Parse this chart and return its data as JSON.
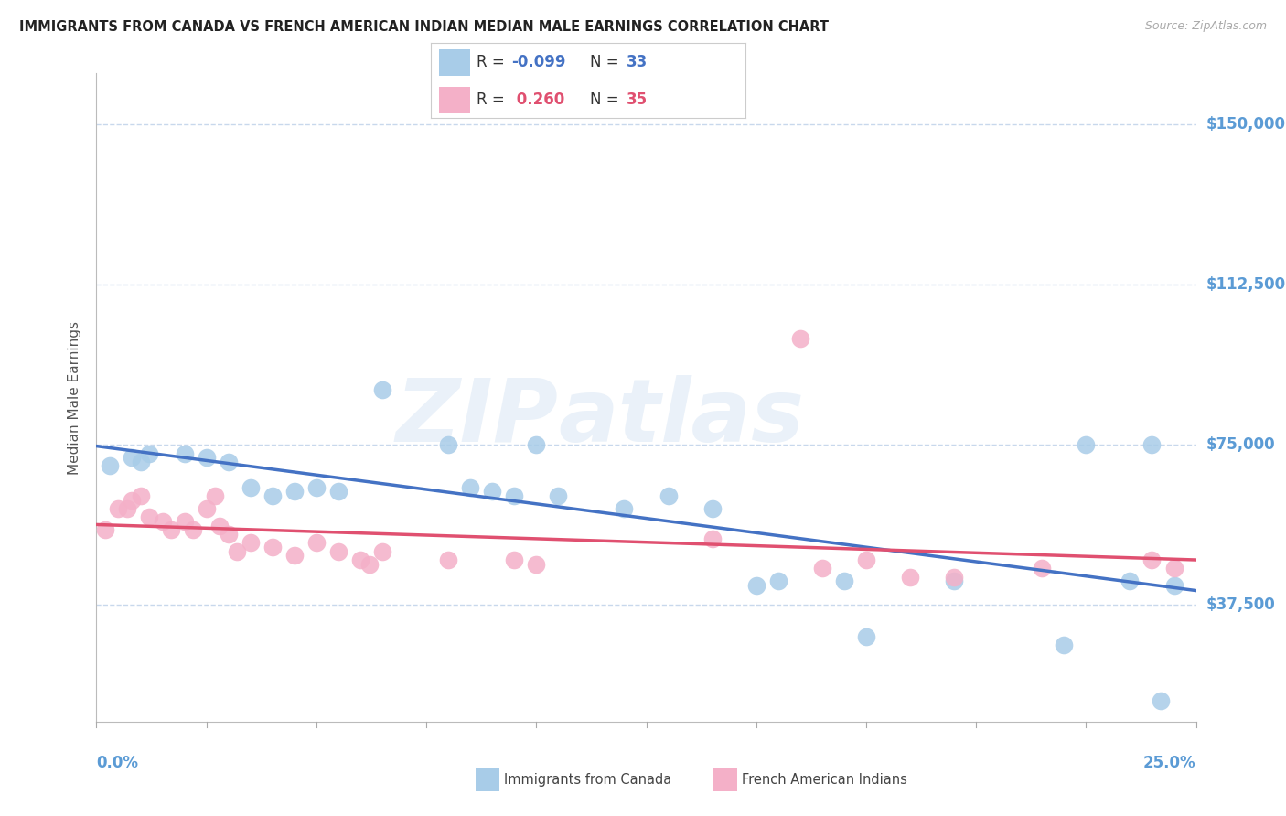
{
  "title": "IMMIGRANTS FROM CANADA VS FRENCH AMERICAN INDIAN MEDIAN MALE EARNINGS CORRELATION CHART",
  "source": "Source: ZipAtlas.com",
  "ylabel": "Median Male Earnings",
  "xlim": [
    0.0,
    0.25
  ],
  "ylim": [
    10000,
    162000
  ],
  "yticks": [
    37500,
    75000,
    112500,
    150000
  ],
  "ytick_labels": [
    "$37,500",
    "$75,000",
    "$112,500",
    "$150,000"
  ],
  "series1_color": "#a8cce8",
  "series2_color": "#f4b0c8",
  "line1_color": "#4472c4",
  "line2_color": "#e05070",
  "background_color": "#ffffff",
  "grid_color": "#c8d8ec",
  "axis_label_color": "#5b9bd5",
  "title_color": "#222222",
  "canada_x": [
    0.003,
    0.008,
    0.01,
    0.012,
    0.02,
    0.025,
    0.03,
    0.035,
    0.04,
    0.045,
    0.05,
    0.055,
    0.065,
    0.08,
    0.085,
    0.09,
    0.095,
    0.1,
    0.105,
    0.12,
    0.13,
    0.14,
    0.15,
    0.155,
    0.17,
    0.175,
    0.195,
    0.22,
    0.225,
    0.235,
    0.24,
    0.242,
    0.245
  ],
  "canada_y": [
    70000,
    72000,
    71000,
    73000,
    73000,
    72000,
    71000,
    65000,
    63000,
    64000,
    65000,
    64000,
    88000,
    75000,
    65000,
    64000,
    63000,
    75000,
    63000,
    60000,
    63000,
    60000,
    42000,
    43000,
    43000,
    30000,
    43000,
    28000,
    75000,
    43000,
    75000,
    15000,
    42000
  ],
  "french_x": [
    0.002,
    0.005,
    0.007,
    0.008,
    0.01,
    0.012,
    0.015,
    0.017,
    0.02,
    0.022,
    0.025,
    0.027,
    0.028,
    0.03,
    0.032,
    0.035,
    0.04,
    0.045,
    0.05,
    0.055,
    0.06,
    0.062,
    0.065,
    0.08,
    0.095,
    0.1,
    0.14,
    0.16,
    0.165,
    0.175,
    0.185,
    0.195,
    0.215,
    0.24,
    0.245
  ],
  "french_y": [
    55000,
    60000,
    60000,
    62000,
    63000,
    58000,
    57000,
    55000,
    57000,
    55000,
    60000,
    63000,
    56000,
    54000,
    50000,
    52000,
    51000,
    49000,
    52000,
    50000,
    48000,
    47000,
    50000,
    48000,
    48000,
    47000,
    53000,
    100000,
    46000,
    48000,
    44000,
    44000,
    46000,
    48000,
    46000
  ]
}
